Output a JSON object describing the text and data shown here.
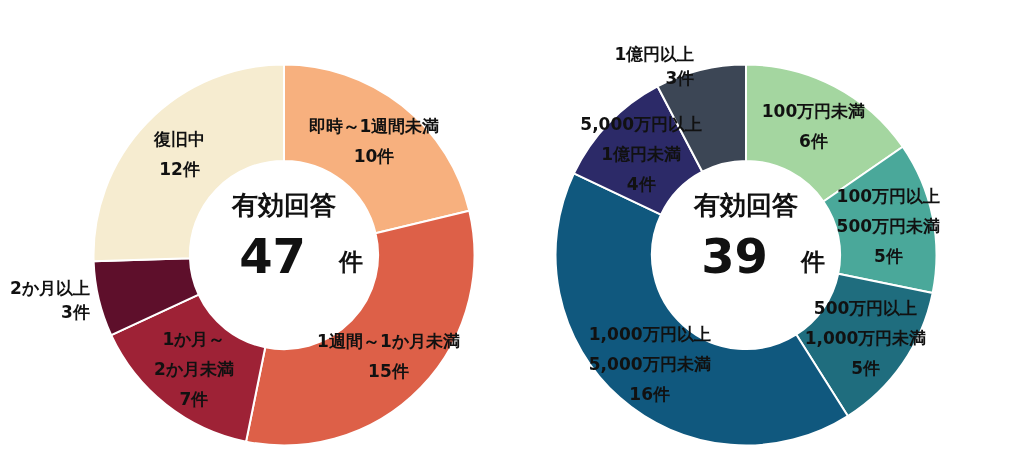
{
  "chart_data": [
    {
      "type": "donut",
      "title": "有効回答",
      "annotations": [
        "47",
        "件"
      ],
      "categories": [
        "即時～1週間未満",
        "1週間～1か月未満",
        "1か月～\n2か月未満",
        "2か月以上",
        "復旧中"
      ],
      "values": [
        10,
        15,
        7,
        3,
        12
      ],
      "value_labels": [
        "10件",
        "15件",
        "7件",
        "3件",
        "12件"
      ],
      "colors": [
        "#f7b07e",
        "#dd6048",
        "#9e2236",
        "#5e0f2b",
        "#f6ecd0"
      ]
    },
    {
      "type": "donut",
      "title": "有効回答",
      "annotations": [
        "39",
        "件"
      ],
      "categories": [
        "100万円未満",
        "100万円以上\n500万円未満",
        "500万円以上\n1,000万円未満",
        "1,000万円以上\n5,000万円未満",
        "5,000万円以上\n1億円未満",
        "1億円以上"
      ],
      "values": [
        6,
        5,
        5,
        16,
        4,
        3
      ],
      "value_labels": [
        "6件",
        "5件",
        "5件",
        "16件",
        "4件",
        "3件"
      ],
      "colors": [
        "#a4d6a0",
        "#4aa89a",
        "#1f6d7e",
        "#10587e",
        "#2c2a68",
        "#3c4655"
      ]
    }
  ]
}
